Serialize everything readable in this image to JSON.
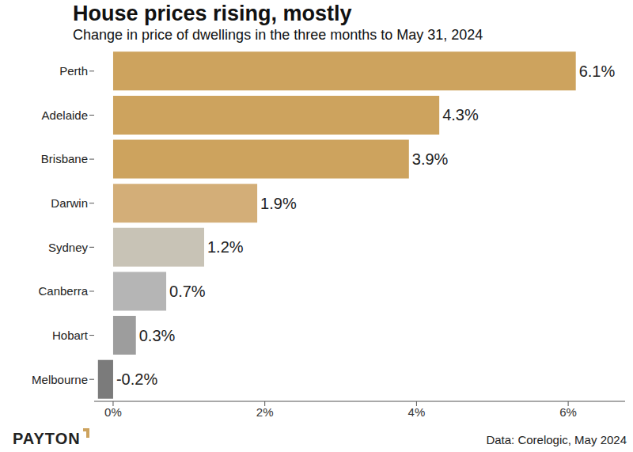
{
  "chart_data": {
    "type": "bar",
    "title": "House prices rising, mostly",
    "subtitle": "Change in price of dwellings in the three months to May 31, 2024",
    "annotations": [
      "Data: Corelogic, May 2024",
      "PAYTON"
    ],
    "orientation": "horizontal",
    "categories": [
      "Perth",
      "Adelaide",
      "Brisbane",
      "Darwin",
      "Sydney",
      "Canberra",
      "Hobart",
      "Melbourne"
    ],
    "values": [
      6.1,
      4.3,
      3.9,
      1.9,
      1.2,
      0.7,
      0.3,
      -0.2
    ],
    "value_labels": [
      "6.1%",
      "4.3%",
      "3.9%",
      "1.9%",
      "1.2%",
      "0.7%",
      "0.3%",
      "-0.2%"
    ],
    "colors": [
      "#cda35e",
      "#cda35e",
      "#cda35e",
      "#d3ae78",
      "#c8c3b6",
      "#b5b5b5",
      "#9d9d9d",
      "#7b7b7b"
    ],
    "xlim": [
      -0.25,
      6.75
    ],
    "xticks": [
      {
        "value": 0,
        "label": "0%"
      },
      {
        "value": 2,
        "label": "2%"
      },
      {
        "value": 4,
        "label": "4%"
      },
      {
        "value": 6,
        "label": "6%"
      }
    ],
    "grid": false,
    "data_labels": true
  }
}
